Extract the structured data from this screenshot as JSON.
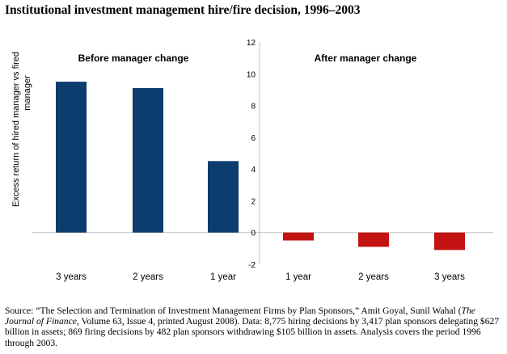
{
  "title": "Institutional investment management hire/fire decision, 1996–2003",
  "chart_data": {
    "type": "bar",
    "ylabel": "Excess return of hired manager vs fired manager",
    "ylabel_lines": [
      "Excess return of hired manager vs fired",
      "manager"
    ],
    "ylim": [
      -2,
      12
    ],
    "yticks": [
      -2,
      0,
      2,
      4,
      6,
      8,
      10,
      12
    ],
    "grid": false,
    "colors": {
      "before": "#0d3c6e",
      "after": "#c31313"
    },
    "groups": [
      {
        "label": "Before manager change",
        "categories": [
          "3 years",
          "2 years",
          "1 year"
        ],
        "values": [
          9.5,
          9.1,
          4.5
        ]
      },
      {
        "label": "After manager change",
        "categories": [
          "1 year",
          "2 years",
          "3 years"
        ],
        "values": [
          -0.5,
          -0.9,
          -1.1
        ]
      }
    ]
  },
  "source": {
    "part1": "Source: “The Selection and Termination of Investment Management Firms by Plan Sponsors,” Amit Goyal, Sunil Wahal (",
    "journal": "The Journal of Finance",
    "part2": ", Volume 63, Issue 4, printed August 2008). Data: 8,775 hiring decisions by 3,417 plan sponsors delegating $627 billion in assets; 869 firing decisions by 482 plan sponsors withdrawing $105 billion in assets. Analysis covers the period 1996 through 2003."
  }
}
